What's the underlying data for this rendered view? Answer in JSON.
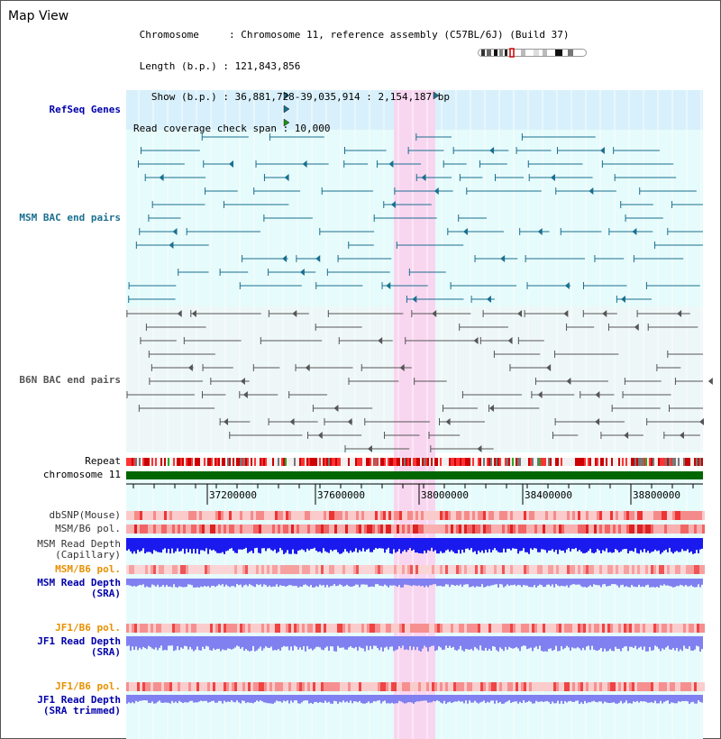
{
  "view": {
    "title": "Map View"
  },
  "info": {
    "lines": [
      " Chromosome     : Chromosome 11, reference assembly (C57BL/6J) (Build 37)",
      " Length (b.p.) : 121,843,856",
      "   Show (b.p.) : 36,881,728-39,035,914 : 2,154,187 bp",
      "Read coverage check span : 10,000"
    ]
  },
  "tracks": {
    "refseq": "RefSeq Genes",
    "msm_bac": "MSM BAC end pairs",
    "b6n_bac": "B6N BAC end pairs",
    "repeat": "Repeat",
    "chromosome": "chromosome 11",
    "dbsnp": "dbSNP(Mouse)",
    "msm_b6_pol": "MSM/B6 pol.",
    "msm_depth_cap_1": "MSM Read Depth",
    "msm_depth_cap_2": "(Capillary)",
    "msm_b6_pol_sra": "MSM/B6 pol.",
    "msm_depth_sra_1": "MSM Read Depth",
    "msm_depth_sra_2": "(SRA)",
    "jf1_b6_pol": "JF1/B6 pol.",
    "jf1_depth_1": "JF1 Read Depth",
    "jf1_depth_2": "(SRA)",
    "jf1_b6_pol_trim": "JF1/B6 pol.",
    "jf1_trim_1": "JF1 Read Depth",
    "jf1_trim_2": "(SRA trimmed)"
  },
  "axis": {
    "ticks": [
      "37200000",
      "37600000",
      "38000000",
      "38400000",
      "38800000"
    ]
  },
  "colors": {
    "highlight": "#f9d6f0",
    "chromosome_bar": "#006600",
    "refseq_bg": "#d8f0fb",
    "msm_line": "#1a6f8f",
    "b6n_line": "#555555",
    "depth_capillary": "#1a1aee",
    "depth_sra": "#8080f0"
  }
}
